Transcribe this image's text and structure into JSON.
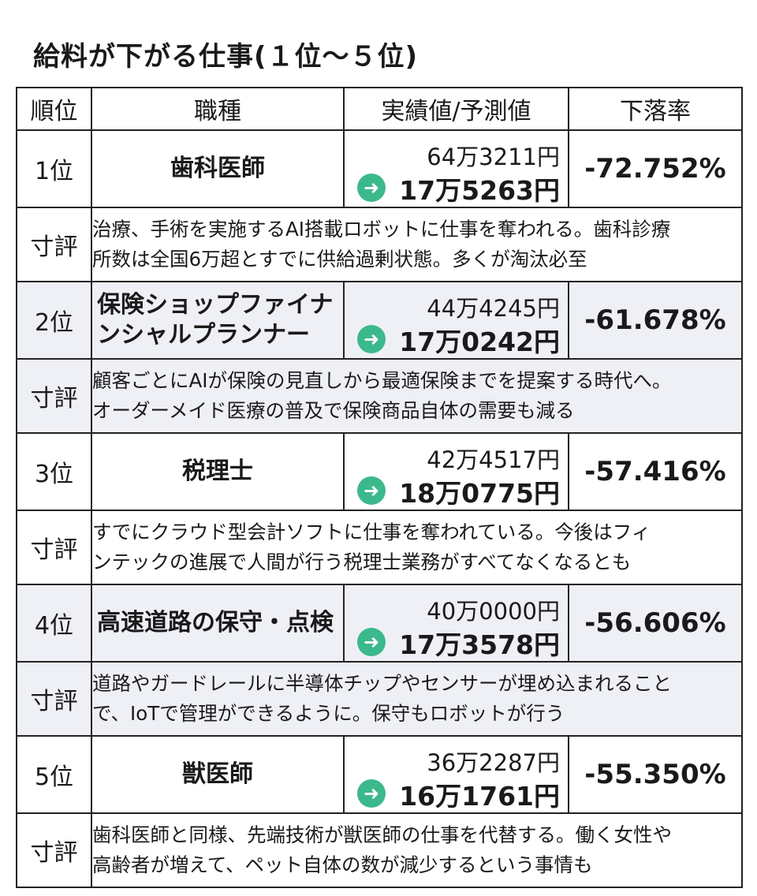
{
  "title": "給料が下がる仕事(１位～５位)",
  "headers": {
    "rank": "順位",
    "job": "職種",
    "values": "実績値/予測値",
    "rate": "下落率"
  },
  "comment_label": "寸評",
  "arrow_color": "#3cb98c",
  "shade_color": "#eef0f6",
  "rows": [
    {
      "rank": "1位",
      "job": "歯科医師",
      "current": "64万3211円",
      "predicted": "17万5263円",
      "rate": "-72.752%",
      "comment_line1": "治療、手術を実施するAI搭載ロボットに仕事を奪われる。歯科診療",
      "comment_line2": "所数は全国6万超とすでに供給過剰状態。多くが淘汰必至"
    },
    {
      "rank": "2位",
      "job_line1": "保険ショップファイナ",
      "job_line2": "ンシャルプランナー",
      "current": "44万4245円",
      "predicted": "17万0242円",
      "rate": "-61.678%",
      "comment_line1": "顧客ごとにAIが保険の見直しから最適保険までを提案する時代へ。",
      "comment_line2": "オーダーメイド医療の普及で保険商品自体の需要も減る"
    },
    {
      "rank": "3位",
      "job": "税理士",
      "current": "42万4517円",
      "predicted": "18万0775円",
      "rate": "-57.416%",
      "comment_line1": "すでにクラウド型会計ソフトに仕事を奪われている。今後はフィ",
      "comment_line2": "ンテックの進展で人間が行う税理士業務がすべてなくなるとも"
    },
    {
      "rank": "4位",
      "job": "高速道路の保守・点検",
      "current": "40万0000円",
      "predicted": "17万3578円",
      "rate": "-56.606%",
      "comment_line1": "道路やガードレールに半導体チップやセンサーが埋め込まれること",
      "comment_line2": "で、IoTで管理ができるように。保守もロボットが行う"
    },
    {
      "rank": "5位",
      "job": "獣医師",
      "current": "36万2287円",
      "predicted": "16万1761円",
      "rate": "-55.350%",
      "comment_line1": "歯科医師と同様、先端技術が獣医師の仕事を代替する。働く女性や",
      "comment_line2": "高齢者が増えて、ペット自体の数が減少するという事情も"
    }
  ]
}
